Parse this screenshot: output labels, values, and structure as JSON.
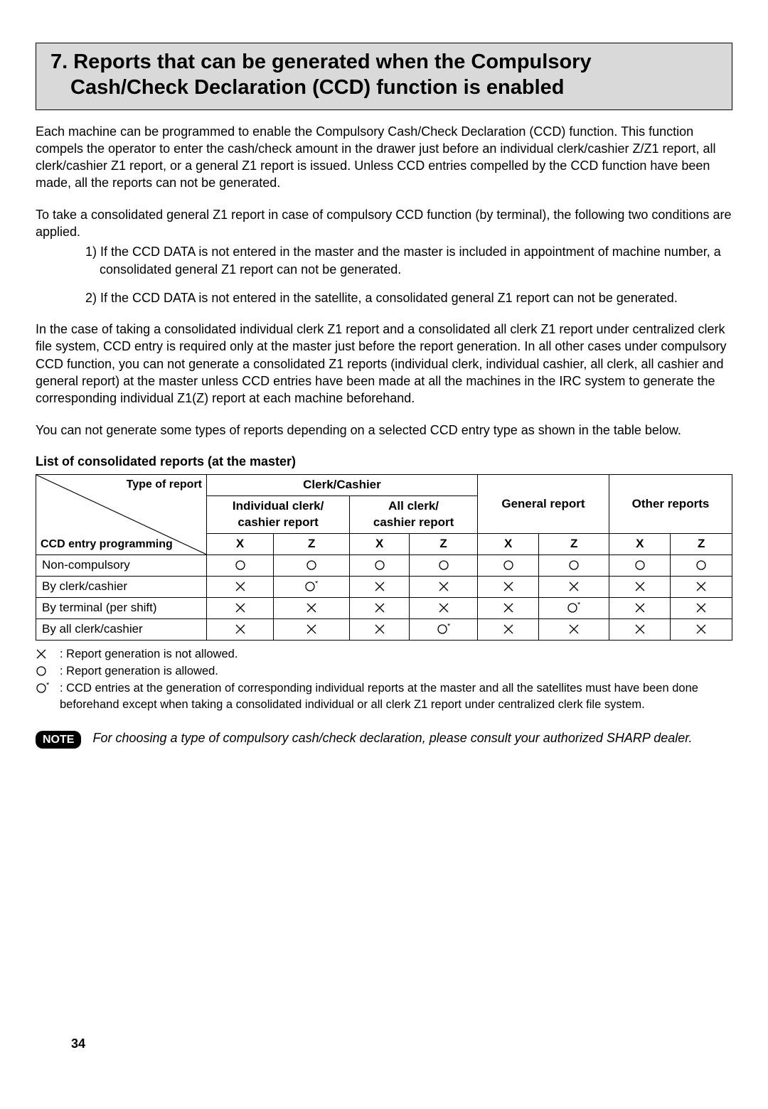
{
  "header": {
    "title_line1": "7. Reports that can be generated when the Compulsory",
    "title_line2": "Cash/Check Declaration (CCD) function is enabled"
  },
  "paragraphs": {
    "p1": "Each machine can be programmed to enable the Compulsory Cash/Check Declaration (CCD) function. This function compels the operator to enter the cash/check amount in the drawer just before an individual clerk/cashier Z/Z1 report, all clerk/cashier Z1 report, or a general Z1 report is issued. Unless CCD entries compelled by the CCD function have been made, all the reports can not be generated.",
    "p2": "To take a consolidated general Z1 report in case of compulsory CCD function (by terminal), the following two conditions are applied.",
    "li1": "1) If the CCD DATA is not entered in the master and the master is included in appointment of machine number, a consolidated general Z1 report can not be generated.",
    "li2": "2) If the CCD DATA is not entered in the satellite, a consolidated general Z1 report can not be generated.",
    "p3": "In the case of taking a consolidated individual clerk Z1 report and a consolidated all clerk Z1 report under centralized clerk file system, CCD entry is required only at the master just before the report generation. In all other cases under compulsory CCD function, you can not generate a consolidated Z1 reports (individual clerk, individual cashier, all clerk, all cashier and general report) at the master unless CCD entries have been made at all the machines in the IRC system to generate the corresponding individual Z1(Z) report at each machine beforehand.",
    "p4": "You can not generate some types of reports depending on a selected CCD entry type as shown in the table below.",
    "table_caption": "List of consolidated reports (at the master)"
  },
  "table": {
    "diag_top": "Type of report",
    "diag_bot": "CCD entry programming",
    "group_headers": [
      "Clerk/Cashier",
      "General report",
      "Other reports"
    ],
    "sub_headers": [
      "Individual clerk/\ncashier report",
      "All clerk/\ncashier report"
    ],
    "xz_labels": [
      "X",
      "Z",
      "X",
      "Z",
      "X",
      "Z",
      "X",
      "Z"
    ],
    "rows": [
      {
        "label": "Non-compulsory",
        "cells": [
          "O",
          "O",
          "O",
          "O",
          "O",
          "O",
          "O",
          "O"
        ]
      },
      {
        "label": "By clerk/cashier",
        "cells": [
          "X",
          "Os",
          "X",
          "X",
          "X",
          "X",
          "X",
          "X"
        ]
      },
      {
        "label": "By terminal (per shift)",
        "cells": [
          "X",
          "X",
          "X",
          "X",
          "X",
          "Os",
          "X",
          "X"
        ]
      },
      {
        "label": "By all clerk/cashier",
        "cells": [
          "X",
          "X",
          "X",
          "Os",
          "X",
          "X",
          "X",
          "X"
        ]
      }
    ],
    "symbols": {
      "X": "✕",
      "O": "◯",
      "Os": "◯*"
    },
    "col_widths": {
      "rowlabel": 240,
      "cell": 90
    },
    "border_color": "#000000",
    "font_size": 17
  },
  "legend": {
    "x": ": Report generation is not allowed.",
    "o": ": Report generation is allowed.",
    "os": ": CCD entries at the generation of corresponding individual reports at the master and all the satellites must have been done beforehand except when taking a consolidated individual or all clerk Z1 report under centralized clerk file system."
  },
  "note": {
    "badge": "NOTE",
    "text": "For choosing a type of compulsory cash/check declaration, please consult your authorized SHARP dealer."
  },
  "page_number": "34"
}
